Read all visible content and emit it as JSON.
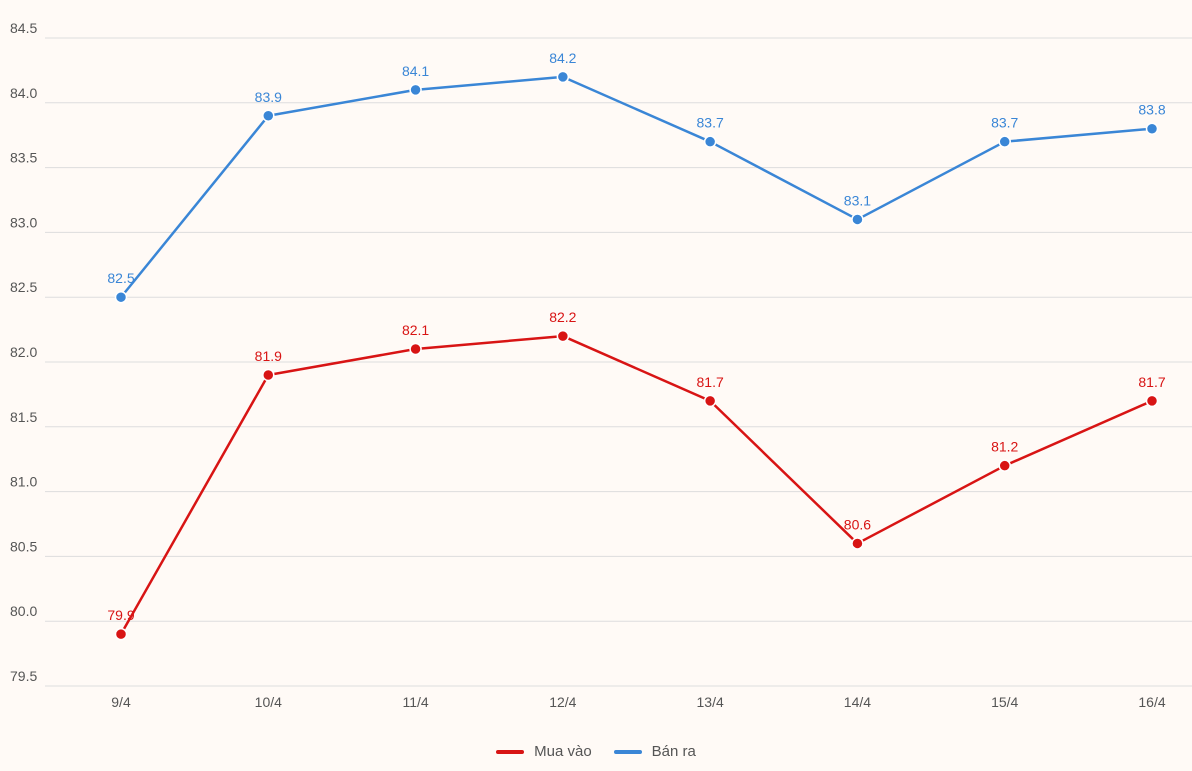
{
  "colors": {
    "background": "#fffaf6",
    "grid": "#dddddd",
    "buy": "#d81414",
    "sell": "#3a86d6"
  },
  "chart_data": {
    "type": "line",
    "title": "",
    "xlabel": "",
    "ylabel": "",
    "categories": [
      "9/4",
      "10/4",
      "11/4",
      "12/4",
      "13/4",
      "14/4",
      "15/4",
      "16/4"
    ],
    "ylim": [
      79.5,
      84.5
    ],
    "yticks": [
      "84.5",
      "84.0",
      "83.5",
      "83.0",
      "82.5",
      "82.0",
      "81.5",
      "81.0",
      "80.5",
      "80.0",
      "79.5"
    ],
    "grid": "horizontal",
    "legend": "bottom-center",
    "series": [
      {
        "name": "Mua vào",
        "color": "#d81414",
        "values": [
          79.9,
          81.9,
          82.1,
          82.2,
          81.7,
          80.6,
          81.2,
          81.7
        ],
        "labels": [
          "79.9",
          "81.9",
          "82.1",
          "82.2",
          "81.7",
          "80.6",
          "81.2",
          "81.7"
        ]
      },
      {
        "name": "Bán ra",
        "color": "#3a86d6",
        "values": [
          82.5,
          83.9,
          84.1,
          84.2,
          83.7,
          83.1,
          83.7,
          83.8
        ],
        "labels": [
          "82.5",
          "83.9",
          "84.1",
          "84.2",
          "83.7",
          "83.1",
          "83.7",
          "83.8"
        ]
      }
    ]
  }
}
